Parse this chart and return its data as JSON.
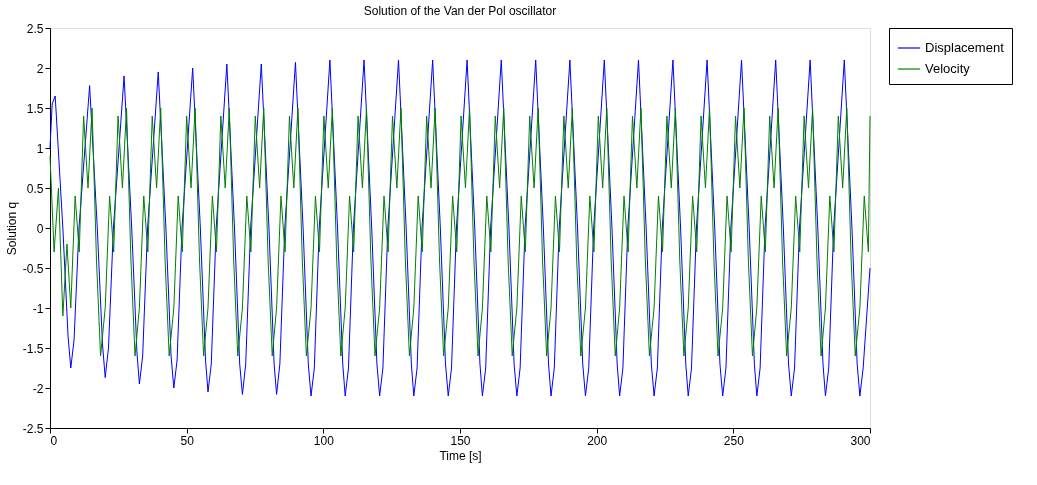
{
  "chart_data": {
    "type": "line",
    "title": "Solution of the Van der Pol oscillator",
    "xlabel": "Time [s]",
    "ylabel": "Solution q",
    "xlim": [
      0,
      300
    ],
    "xticks": [
      0,
      50,
      100,
      150,
      200,
      250,
      300
    ],
    "ylim": [
      -2.5,
      2.5
    ],
    "yticks": [
      -2.5,
      -2,
      -1.5,
      -1,
      -0.5,
      0,
      0.5,
      1,
      1.5,
      2,
      2.5
    ],
    "grid": false,
    "legend": "top right",
    "line_style": "solid",
    "marker": "none",
    "series": [
      {
        "name": "Displacement",
        "color": "#0000ff",
        "x": [
          0,
          0.8,
          1.9,
          4.7,
          6.6,
          7.6,
          8.8,
          10.6,
          14.5,
          17.3,
          19.2,
          20.2,
          21.4,
          23.2,
          27.1,
          29.9,
          31.8,
          32.7,
          33.9,
          35.7,
          39.6,
          42.4,
          44.3,
          45.3,
          46.5,
          48.3,
          52.2,
          55.0,
          56.9,
          57.8,
          59.0,
          60.8,
          64.7,
          67.5,
          69.4,
          70.4,
          71.6,
          73.4,
          77.3,
          80.1,
          82.0,
          82.9,
          84.1,
          85.9,
          89.8,
          92.6,
          94.5,
          95.5,
          96.7,
          98.5,
          102.4,
          105.2,
          107.1,
          108.0,
          109.2,
          111.0,
          114.9,
          117.7,
          119.6,
          120.6,
          121.8,
          123.6,
          127.5,
          130.3,
          132.2,
          133.1,
          134.3,
          136.1,
          140.0,
          142.8,
          144.7,
          145.7,
          146.9,
          148.7,
          152.6,
          155.4,
          157.3,
          158.2,
          159.4,
          161.2,
          165.1,
          167.9,
          169.8,
          170.8,
          172.0,
          173.8,
          177.7,
          180.5,
          182.4,
          183.3,
          184.5,
          186.3,
          190.2,
          193.0,
          194.9,
          195.9,
          197.1,
          198.9,
          202.8,
          205.6,
          207.5,
          208.4,
          209.6,
          211.4,
          215.3,
          218.1,
          220.0,
          221.0,
          222.2,
          224.0,
          227.9,
          230.7,
          232.6,
          233.5,
          234.7,
          236.5,
          240.4,
          243.2,
          245.1,
          246.1,
          247.3,
          249.1,
          253.0,
          255.8,
          257.7,
          258.6,
          259.8,
          261.6,
          265.5,
          268.3,
          270.2,
          271.2,
          272.4,
          274.2,
          278.1,
          280.9,
          282.8,
          283.7,
          284.9,
          286.7,
          290.6,
          293.4,
          295.3,
          296.3,
          297.5,
          300
        ],
        "values": [
          1.0,
          1.55,
          1.65,
          0,
          -1.35,
          -1.75,
          -1.4,
          0,
          1.78,
          0,
          -1.45,
          -1.87,
          -1.5,
          0,
          1.9,
          0,
          -1.55,
          -1.95,
          -1.6,
          0,
          1.95,
          0,
          -1.6,
          -2.0,
          -1.65,
          0,
          2.0,
          0,
          -1.65,
          -2.05,
          -1.7,
          0,
          2.05,
          0,
          -1.7,
          -2.08,
          -1.7,
          0,
          2.05,
          0,
          -1.7,
          -2.08,
          -1.7,
          0,
          2.07,
          0,
          -1.7,
          -2.1,
          -1.75,
          0,
          2.1,
          0,
          -1.7,
          -2.1,
          -1.75,
          0,
          2.1,
          0,
          -1.7,
          -2.1,
          -1.75,
          0,
          2.1,
          0,
          -1.7,
          -2.1,
          -1.75,
          0,
          2.1,
          0,
          -1.7,
          -2.1,
          -1.75,
          0,
          2.1,
          0,
          -1.7,
          -2.1,
          -1.75,
          0,
          2.1,
          0,
          -1.7,
          -2.1,
          -1.75,
          0,
          2.1,
          0,
          -1.7,
          -2.1,
          -1.75,
          0,
          2.1,
          0,
          -1.7,
          -2.1,
          -1.75,
          0,
          2.1,
          0,
          -1.7,
          -2.1,
          -1.75,
          0,
          2.1,
          0,
          -1.7,
          -2.1,
          -1.75,
          0,
          2.1,
          0,
          -1.7,
          -2.1,
          -1.75,
          0,
          2.1,
          0,
          -1.7,
          -2.1,
          -1.75,
          0,
          2.1,
          0,
          -1.7,
          -2.1,
          -1.75,
          0,
          2.1,
          0,
          -1.7,
          -2.1,
          -1.75,
          0,
          2.1,
          0,
          -1.7,
          -2.1,
          -1.75,
          0,
          2.1,
          0,
          -1.7,
          -2.1,
          -1.75,
          -0.5
        ]
      },
      {
        "name": "Velocity",
        "color": "#008000",
        "x": [
          0,
          1.5,
          3.1,
          4.7,
          6.2,
          7.6,
          9.2,
          10.7,
          12.3,
          13.9,
          15.4,
          17.0,
          18.5,
          20.2,
          21.8,
          23.3,
          24.9,
          26.5,
          28.0,
          29.6,
          31.1,
          32.7,
          34.3,
          35.8,
          37.4,
          39.0,
          40.5,
          42.1,
          43.6,
          45.3,
          46.9,
          48.4,
          50.0,
          51.6,
          53.1,
          54.7,
          56.2,
          57.8,
          59.4,
          60.9,
          62.5,
          64.1,
          65.6,
          67.2,
          68.7,
          70.4,
          72.0,
          73.5,
          75.1,
          76.7,
          78.2,
          79.8,
          81.3,
          82.9,
          84.5,
          86.0,
          87.6,
          89.2,
          90.7,
          92.3,
          93.8,
          95.5,
          97.1,
          98.6,
          100.2,
          101.8,
          103.3,
          104.9,
          106.4,
          108.0,
          109.6,
          111.1,
          112.7,
          114.3,
          115.8,
          117.4,
          118.9,
          120.6,
          122.2,
          123.7,
          125.3,
          126.9,
          128.4,
          130.0,
          131.5,
          133.1,
          134.7,
          136.2,
          137.8,
          139.4,
          140.9,
          142.5,
          144.0,
          145.7,
          147.3,
          148.8,
          150.4,
          152.0,
          153.5,
          155.1,
          156.6,
          158.2,
          159.8,
          161.3,
          162.9,
          164.5,
          166.0,
          167.6,
          169.1,
          170.8,
          172.4,
          173.9,
          175.5,
          177.1,
          178.6,
          180.2,
          181.7,
          183.3,
          184.9,
          186.4,
          188.0,
          189.6,
          191.1,
          192.7,
          194.2,
          195.9,
          197.5,
          199.0,
          200.6,
          202.2,
          203.7,
          205.3,
          206.8,
          208.4,
          210.0,
          211.5,
          213.1,
          214.7,
          216.2,
          217.8,
          219.3,
          221.0,
          222.6,
          224.1,
          225.7,
          227.3,
          228.8,
          230.4,
          231.9,
          233.5,
          235.1,
          236.6,
          238.2,
          239.8,
          241.3,
          242.9,
          244.4,
          246.1,
          247.7,
          249.2,
          250.8,
          252.4,
          253.9,
          255.5,
          257.0,
          258.6,
          260.2,
          261.7,
          263.3,
          264.9,
          266.4,
          268.0,
          269.5,
          271.2,
          272.8,
          274.3,
          275.9,
          277.5,
          279.0,
          280.6,
          282.1,
          283.7,
          285.3,
          286.8,
          288.4,
          290.0,
          291.5,
          293.1,
          294.6,
          296.3,
          297.9,
          299.4,
          300
        ],
        "values": [
          0.9,
          -0.3,
          0.5,
          -1.1,
          -0.2,
          -1.0,
          0.4,
          -0.3,
          1.4,
          0.5,
          1.5,
          -0.4,
          -1.6,
          -1.0,
          0.4,
          -0.3,
          1.4,
          0.5,
          1.5,
          -0.4,
          -1.6,
          -1.0,
          0.4,
          -0.3,
          1.4,
          0.5,
          1.5,
          -0.4,
          -1.6,
          -1.0,
          0.4,
          -0.3,
          1.4,
          0.5,
          1.5,
          -0.4,
          -1.6,
          -1.0,
          0.4,
          -0.3,
          1.4,
          0.5,
          1.5,
          -0.4,
          -1.6,
          -1.0,
          0.4,
          -0.3,
          1.4,
          0.5,
          1.5,
          -0.4,
          -1.6,
          -1.0,
          0.4,
          -0.3,
          1.4,
          0.5,
          1.5,
          -0.4,
          -1.6,
          -1.0,
          0.4,
          -0.3,
          1.4,
          0.5,
          1.5,
          -0.4,
          -1.6,
          -1.0,
          0.4,
          -0.3,
          1.4,
          0.5,
          1.5,
          -0.4,
          -1.6,
          -1.0,
          0.4,
          -0.3,
          1.4,
          0.5,
          1.5,
          -0.4,
          -1.6,
          -1.0,
          0.4,
          -0.3,
          1.4,
          0.5,
          1.5,
          -0.4,
          -1.6,
          -1.0,
          0.4,
          -0.3,
          1.4,
          0.5,
          1.5,
          -0.4,
          -1.6,
          -1.0,
          0.4,
          -0.3,
          1.4,
          0.5,
          1.5,
          -0.4,
          -1.6,
          -1.0,
          0.4,
          -0.3,
          1.4,
          0.5,
          1.5,
          -0.4,
          -1.6,
          -1.0,
          0.4,
          -0.3,
          1.4,
          0.5,
          1.5,
          -0.4,
          -1.6,
          -1.0,
          0.4,
          -0.3,
          1.4,
          0.5,
          1.5,
          -0.4,
          -1.6,
          -1.0,
          0.4,
          -0.3,
          1.4,
          0.5,
          1.5,
          -0.4,
          -1.6,
          -1.0,
          0.4,
          -0.3,
          1.4,
          0.5,
          1.5,
          -0.4,
          -1.6,
          -1.0,
          0.4,
          -0.3,
          1.4,
          0.5,
          1.5,
          -0.4,
          -1.6,
          -1.0,
          0.4,
          -0.3,
          1.4,
          0.5,
          1.5,
          -0.4,
          -1.6,
          -1.0,
          0.4,
          -0.3,
          1.4,
          0.5,
          1.5,
          -0.4,
          -1.6,
          -1.0,
          0.4,
          -0.3,
          1.4,
          0.5,
          1.5,
          -0.4,
          -1.6,
          -1.0,
          0.4,
          -0.3,
          1.4,
          0.5,
          1.5,
          -0.4,
          -1.6,
          -1.0,
          0.4,
          -0.3,
          1.4
        ]
      }
    ]
  }
}
